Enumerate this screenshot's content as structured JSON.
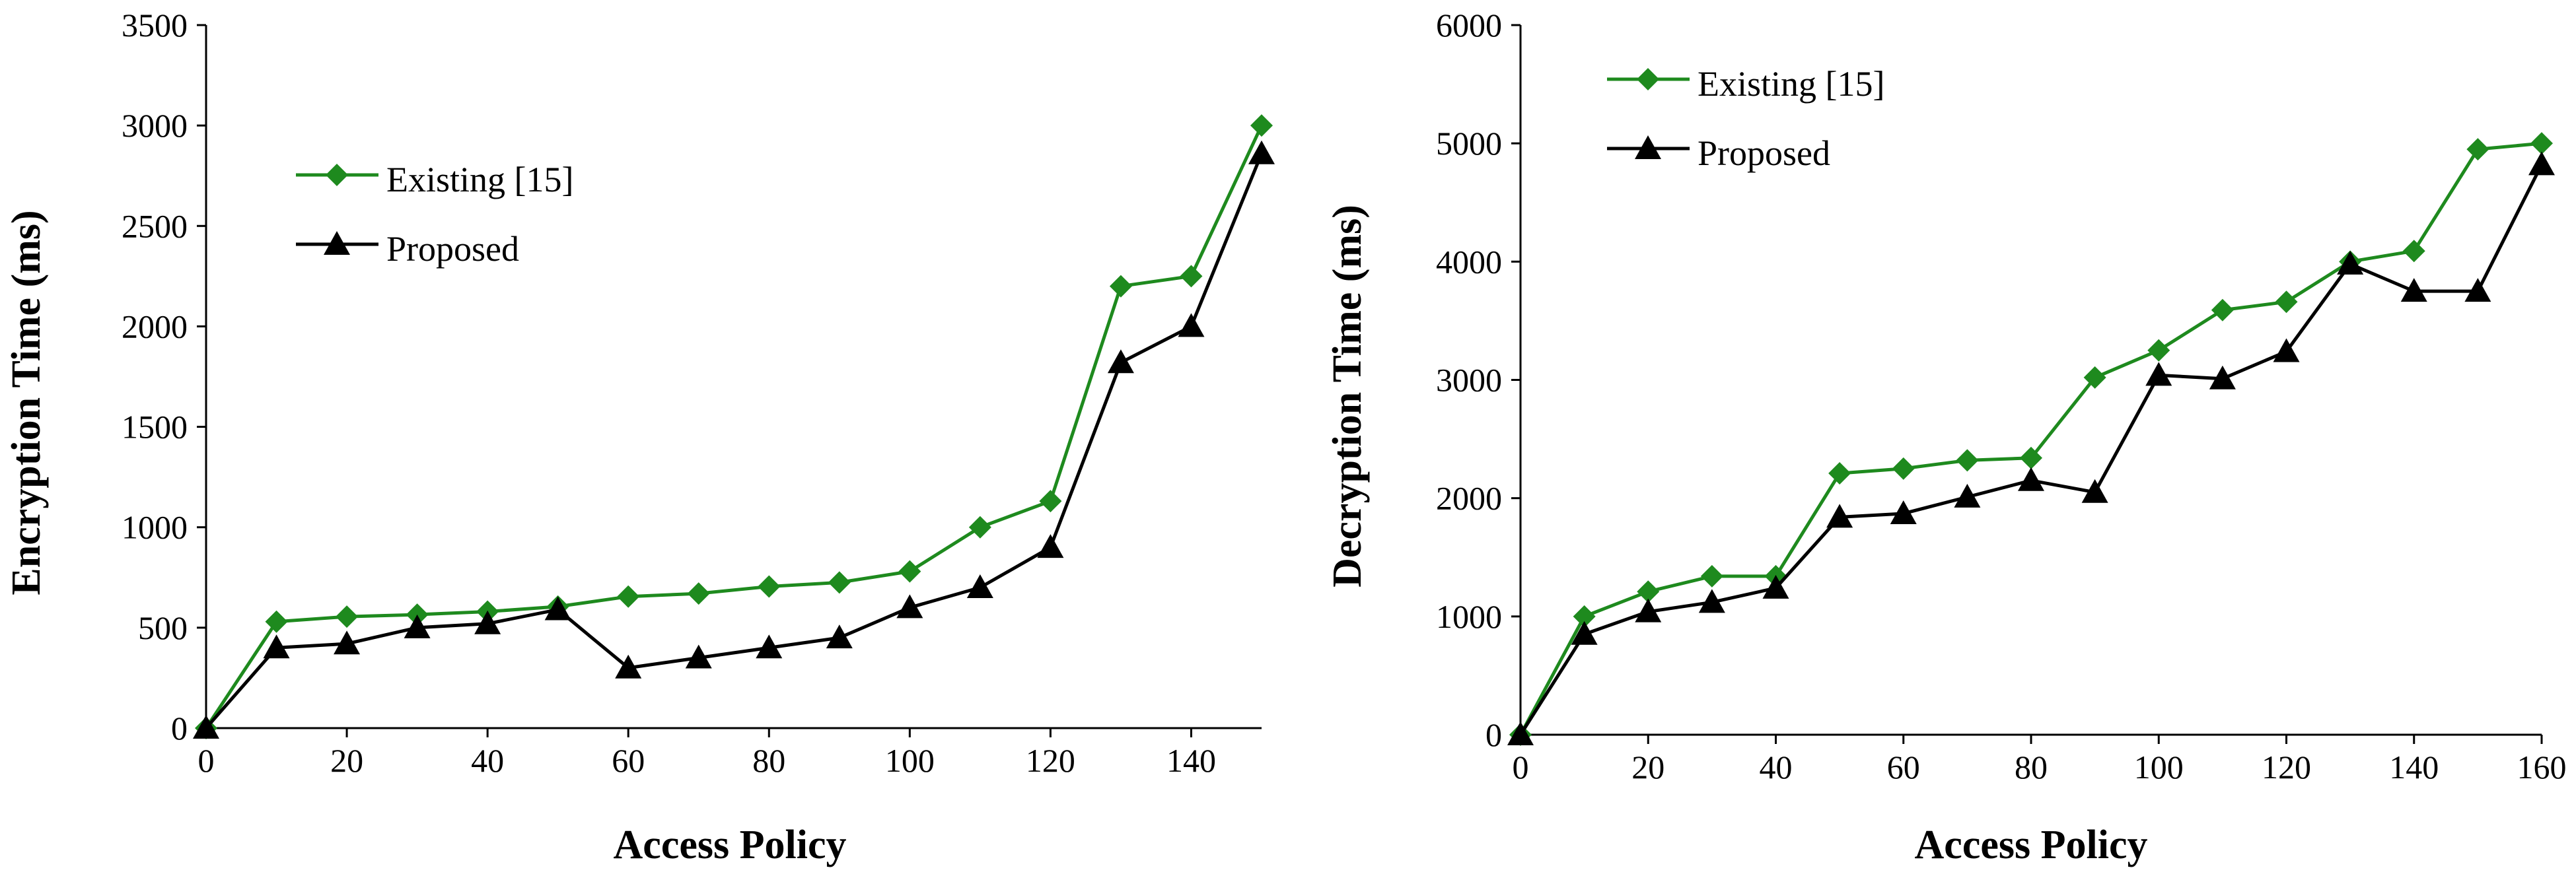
{
  "colors": {
    "existing": "#1e8a1e",
    "proposed": "#000000",
    "axis": "#000000"
  },
  "chart_data": [
    {
      "type": "line",
      "title": "",
      "xlabel": "Access Policy",
      "ylabel": "Encryption Time (ms)",
      "xlim": [
        0,
        150
      ],
      "ylim": [
        0,
        3500
      ],
      "x_ticks": [
        0,
        20,
        40,
        60,
        80,
        100,
        120,
        140
      ],
      "x_tick_labels": [
        "0",
        "20",
        "40",
        "60",
        "80",
        "100",
        "120",
        "140"
      ],
      "y_ticks": [
        0,
        500,
        1000,
        1500,
        2000,
        2500,
        3000,
        3500
      ],
      "y_tick_labels": [
        "0",
        "500",
        "1000",
        "1500",
        "2000",
        "2500",
        "3000",
        "3500"
      ],
      "grid": false,
      "legend_position": "upper-left",
      "x": [
        0,
        10,
        20,
        30,
        40,
        50,
        60,
        70,
        80,
        90,
        100,
        110,
        120,
        130,
        140,
        150
      ],
      "series": [
        {
          "name": "Existing [15]",
          "marker": "diamond",
          "color_key": "existing",
          "values": [
            0,
            530,
            555,
            565,
            580,
            605,
            655,
            670,
            705,
            725,
            780,
            1000,
            1130,
            2200,
            2250,
            3000
          ]
        },
        {
          "name": "Proposed",
          "marker": "triangle",
          "color_key": "proposed",
          "values": [
            0,
            400,
            420,
            500,
            520,
            590,
            300,
            350,
            400,
            450,
            600,
            700,
            900,
            1820,
            2000,
            2860
          ]
        }
      ]
    },
    {
      "type": "line",
      "title": "",
      "xlabel": "Access Policy",
      "ylabel": "Decryption Time (ms)",
      "xlim": [
        0,
        160
      ],
      "ylim": [
        0,
        6000
      ],
      "x_ticks": [
        0,
        20,
        40,
        60,
        80,
        100,
        120,
        140,
        160
      ],
      "x_tick_labels": [
        "0",
        "20",
        "40",
        "60",
        "80",
        "100",
        "120",
        "140",
        "160"
      ],
      "y_ticks": [
        0,
        1000,
        2000,
        3000,
        4000,
        5000,
        6000
      ],
      "y_tick_labels": [
        "0",
        "1000",
        "2000",
        "3000",
        "4000",
        "5000",
        "6000"
      ],
      "grid": false,
      "legend_position": "upper-left",
      "x": [
        0,
        10,
        20,
        30,
        40,
        50,
        60,
        70,
        80,
        90,
        100,
        110,
        120,
        130,
        140,
        150,
        160
      ],
      "series": [
        {
          "name": "Existing [15]",
          "marker": "diamond",
          "color_key": "existing",
          "values": [
            0,
            1000,
            1210,
            1340,
            1340,
            2210,
            2250,
            2320,
            2340,
            3020,
            3250,
            3590,
            3660,
            4000,
            4090,
            4950,
            5000
          ]
        },
        {
          "name": "Proposed",
          "marker": "triangle",
          "color_key": "proposed",
          "values": [
            0,
            850,
            1040,
            1120,
            1240,
            1840,
            1870,
            2010,
            2150,
            2050,
            3040,
            3010,
            3240,
            3980,
            3750,
            3750,
            4820
          ]
        }
      ]
    }
  ]
}
